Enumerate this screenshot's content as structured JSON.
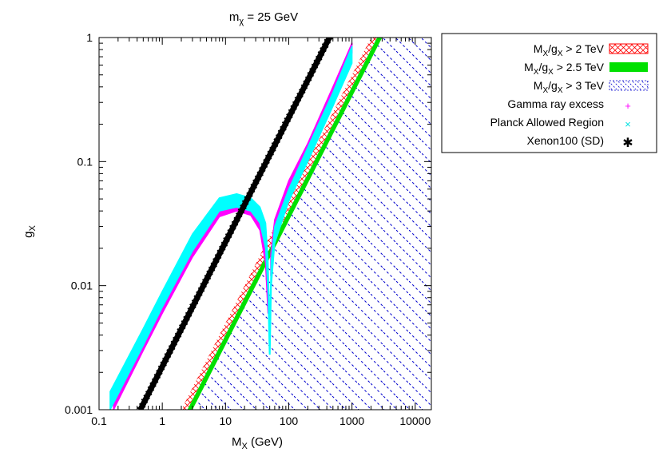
{
  "chart_data": {
    "type": "line",
    "title": {
      "main": "m",
      "sub": "χ",
      "rest": " = 25 GeV"
    },
    "xaxis": {
      "label_main": "M",
      "label_sub": "X",
      "label_rest": " (GeV)",
      "scale": "log",
      "range": [
        0.1,
        18000
      ],
      "ticks": [
        0.1,
        1,
        10,
        100,
        1000,
        10000
      ],
      "tick_labels": [
        "0.1",
        "1",
        "10",
        "100",
        "1000",
        "10000"
      ]
    },
    "yaxis": {
      "label_main": "g",
      "label_sub": "X",
      "scale": "log",
      "range": [
        0.001,
        1
      ],
      "ticks": [
        0.001,
        0.01,
        0.1,
        1
      ],
      "tick_labels": [
        "0.001",
        "0.01",
        "0.1",
        "1"
      ]
    },
    "legend": {
      "position": "outside top-right",
      "entries": [
        {
          "id": "mx2",
          "pre": "M",
          "sub1": "X",
          "mid": "/g",
          "sub2": "X",
          "post": " > 2 TeV",
          "style": "red-crosshatch"
        },
        {
          "id": "mx25",
          "pre": "M",
          "sub1": "X",
          "mid": "/g",
          "sub2": "X",
          "post": " > 2.5 TeV",
          "style": "green-solid"
        },
        {
          "id": "mx3",
          "pre": "M",
          "sub1": "X",
          "mid": "/g",
          "sub2": "X",
          "post": " > 3 TeV",
          "style": "blue-dashed-hatch"
        },
        {
          "id": "gamma",
          "text": "Gamma ray excess",
          "style": "magenta-plus"
        },
        {
          "id": "planck",
          "text": "Planck Allowed Region",
          "style": "cyan-cross"
        },
        {
          "id": "xenon",
          "text": "Xenon100 (SD)",
          "style": "black-star"
        }
      ]
    },
    "series": [
      {
        "name": "MX/gX > 2 TeV",
        "kind": "region",
        "boundary": "gX = MX/2000",
        "color": "#ff0000"
      },
      {
        "name": "MX/gX > 2.5 TeV",
        "kind": "band",
        "boundary": "gX = MX/2500 to MX/3000",
        "color": "#00e000"
      },
      {
        "name": "MX/gX > 3 TeV",
        "kind": "region",
        "boundary": "gX = MX/3000",
        "color": "#0000cc"
      },
      {
        "name": "Gamma ray excess",
        "kind": "band",
        "color": "#ff00ff",
        "left_branch": {
          "x": [
            0.17,
            0.5,
            1,
            3,
            8,
            15,
            25,
            35,
            43,
            47
          ],
          "y_low": [
            0.001,
            0.003,
            0.006,
            0.017,
            0.036,
            0.04,
            0.037,
            0.028,
            0.015,
            0.006
          ],
          "y_high": [
            0.0013,
            0.004,
            0.008,
            0.022,
            0.046,
            0.052,
            0.048,
            0.04,
            0.028,
            0.012
          ]
        },
        "right_branch": {
          "x": [
            52,
            60,
            100,
            200,
            500,
            1000
          ],
          "y_low": [
            0.012,
            0.025,
            0.055,
            0.11,
            0.32,
            0.75
          ],
          "y_high": [
            0.018,
            0.034,
            0.07,
            0.14,
            0.4,
            0.9
          ]
        }
      },
      {
        "name": "Planck Allowed Region",
        "kind": "band",
        "color": "#00ffff",
        "left_branch": {
          "x": [
            0.15,
            0.5,
            1,
            3,
            8,
            15,
            25,
            35,
            43,
            47,
            49.5
          ],
          "y_low": [
            0.001,
            0.0033,
            0.0067,
            0.019,
            0.04,
            0.043,
            0.04,
            0.032,
            0.02,
            0.009,
            0.0028
          ],
          "y_high": [
            0.0014,
            0.0045,
            0.009,
            0.026,
            0.051,
            0.055,
            0.051,
            0.043,
            0.032,
            0.016,
            0.006
          ]
        },
        "right_branch": {
          "x": [
            50.5,
            53,
            60,
            100,
            200,
            500,
            1000
          ],
          "y_low": [
            0.0028,
            0.01,
            0.022,
            0.048,
            0.1,
            0.28,
            0.62
          ],
          "y_high": [
            0.006,
            0.016,
            0.03,
            0.06,
            0.13,
            0.36,
            0.85
          ]
        }
      },
      {
        "name": "Xenon100 (SD)",
        "kind": "line",
        "color": "#000000",
        "x": [
          0.45,
          440
        ],
        "y": [
          0.001,
          1
        ]
      }
    ]
  }
}
